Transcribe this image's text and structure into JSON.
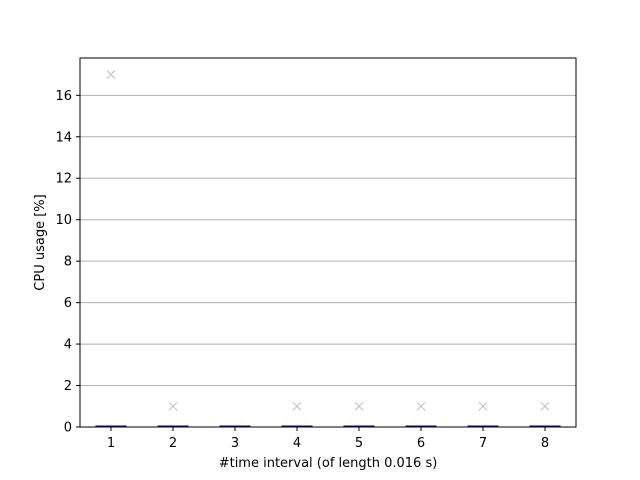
{
  "chart_data": {
    "type": "box",
    "xlabel": "#time interval (of length 0.016 s)",
    "ylabel": "CPU usage [%]",
    "ylim": [
      0,
      17.8
    ],
    "yticks": [
      0,
      2,
      4,
      6,
      8,
      10,
      12,
      14,
      16
    ],
    "grid": "y",
    "categories": [
      "1",
      "2",
      "3",
      "4",
      "5",
      "6",
      "7",
      "8"
    ],
    "medians": [
      0,
      0,
      0,
      0,
      0,
      0,
      0,
      0
    ],
    "outliers": [
      [
        17
      ],
      [
        1
      ],
      [],
      [
        1
      ],
      [
        1
      ],
      [
        1
      ],
      [
        1
      ],
      [
        1
      ]
    ],
    "colors": {
      "box": "#0000aa",
      "grid": "#b0b0b0",
      "outlier": "#c8c8c8"
    }
  }
}
